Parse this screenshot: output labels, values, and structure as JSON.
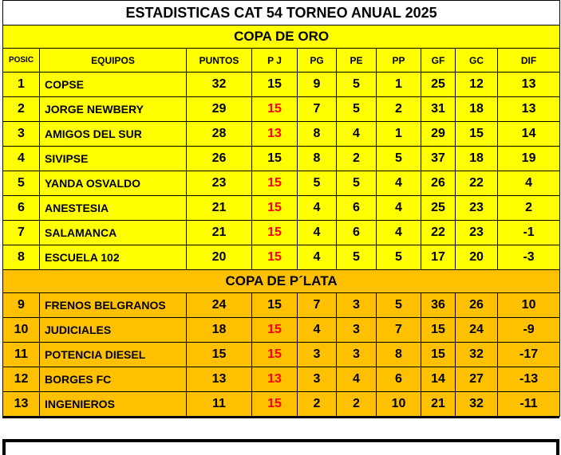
{
  "title": "ESTADISTICAS CAT 54 TORNEO ANUAL 2025",
  "colors": {
    "gold": "#ffff00",
    "silver": "#ffc000",
    "red_value": "#ff0000"
  },
  "headers": [
    "POSIC",
    "EQUIPOS",
    "PUNTOS",
    "P J",
    "PG",
    "PE",
    "PP",
    "GF",
    "GC",
    "DIF"
  ],
  "gold_cup": {
    "label": "COPA DE ORO",
    "rows": [
      {
        "pos": "1",
        "team": "COPSE",
        "pts": "32",
        "pj": "15",
        "pj_red": false,
        "pg": "9",
        "pe": "5",
        "pp": "1",
        "gf": "25",
        "gc": "12",
        "dif": "13"
      },
      {
        "pos": "2",
        "team": "JORGE NEWBERY",
        "pts": "29",
        "pj": "15",
        "pj_red": true,
        "pg": "7",
        "pe": "5",
        "pp": "2",
        "gf": "31",
        "gc": "18",
        "dif": "13"
      },
      {
        "pos": "3",
        "team": "AMIGOS DEL SUR",
        "pts": "28",
        "pj": "13",
        "pj_red": true,
        "pg": "8",
        "pe": "4",
        "pp": "1",
        "gf": "29",
        "gc": "15",
        "dif": "14"
      },
      {
        "pos": "4",
        "team": "SIVIPSE",
        "pts": "26",
        "pj": "15",
        "pj_red": false,
        "pg": "8",
        "pe": "2",
        "pp": "5",
        "gf": "37",
        "gc": "18",
        "dif": "19"
      },
      {
        "pos": "5",
        "team": "YANDA OSVALDO",
        "pts": "23",
        "pj": "15",
        "pj_red": true,
        "pg": "5",
        "pe": "5",
        "pp": "4",
        "gf": "26",
        "gc": "22",
        "dif": "4"
      },
      {
        "pos": "6",
        "team": "ANESTESIA",
        "pts": "21",
        "pj": "15",
        "pj_red": true,
        "pg": "4",
        "pe": "6",
        "pp": "4",
        "gf": "25",
        "gc": "23",
        "dif": "2"
      },
      {
        "pos": "7",
        "team": "SALAMANCA",
        "pts": "21",
        "pj": "15",
        "pj_red": true,
        "pg": "4",
        "pe": "6",
        "pp": "4",
        "gf": "22",
        "gc": "23",
        "dif": "-1"
      },
      {
        "pos": "8",
        "team": "ESCUELA 102",
        "pts": "20",
        "pj": "15",
        "pj_red": true,
        "pg": "4",
        "pe": "5",
        "pp": "5",
        "gf": "17",
        "gc": "20",
        "dif": "-3"
      }
    ]
  },
  "silver_cup": {
    "label": "COPA DE P´LATA",
    "rows": [
      {
        "pos": "9",
        "team": "FRENOS BELGRANOS",
        "pts": "24",
        "pj": "15",
        "pj_red": false,
        "pg": "7",
        "pe": "3",
        "pp": "5",
        "gf": "36",
        "gc": "26",
        "dif": "10"
      },
      {
        "pos": "10",
        "team": "JUDICIALES",
        "pts": "18",
        "pj": "15",
        "pj_red": true,
        "pg": "4",
        "pe": "3",
        "pp": "7",
        "gf": "15",
        "gc": "24",
        "dif": "-9"
      },
      {
        "pos": "11",
        "team": "POTENCIA DIESEL",
        "pts": "15",
        "pj": "15",
        "pj_red": true,
        "pg": "3",
        "pe": "3",
        "pp": "8",
        "gf": "15",
        "gc": "32",
        "dif": "-17"
      },
      {
        "pos": "12",
        "team": "BORGES FC",
        "pts": "13",
        "pj": "13",
        "pj_red": true,
        "pg": "3",
        "pe": "4",
        "pp": "6",
        "gf": "14",
        "gc": "27",
        "dif": "-13"
      },
      {
        "pos": "13",
        "team": "INGENIEROS",
        "pts": "11",
        "pj": "15",
        "pj_red": true,
        "pg": "2",
        "pe": "2",
        "pp": "10",
        "gf": "21",
        "gc": "32",
        "dif": "-11"
      }
    ]
  }
}
